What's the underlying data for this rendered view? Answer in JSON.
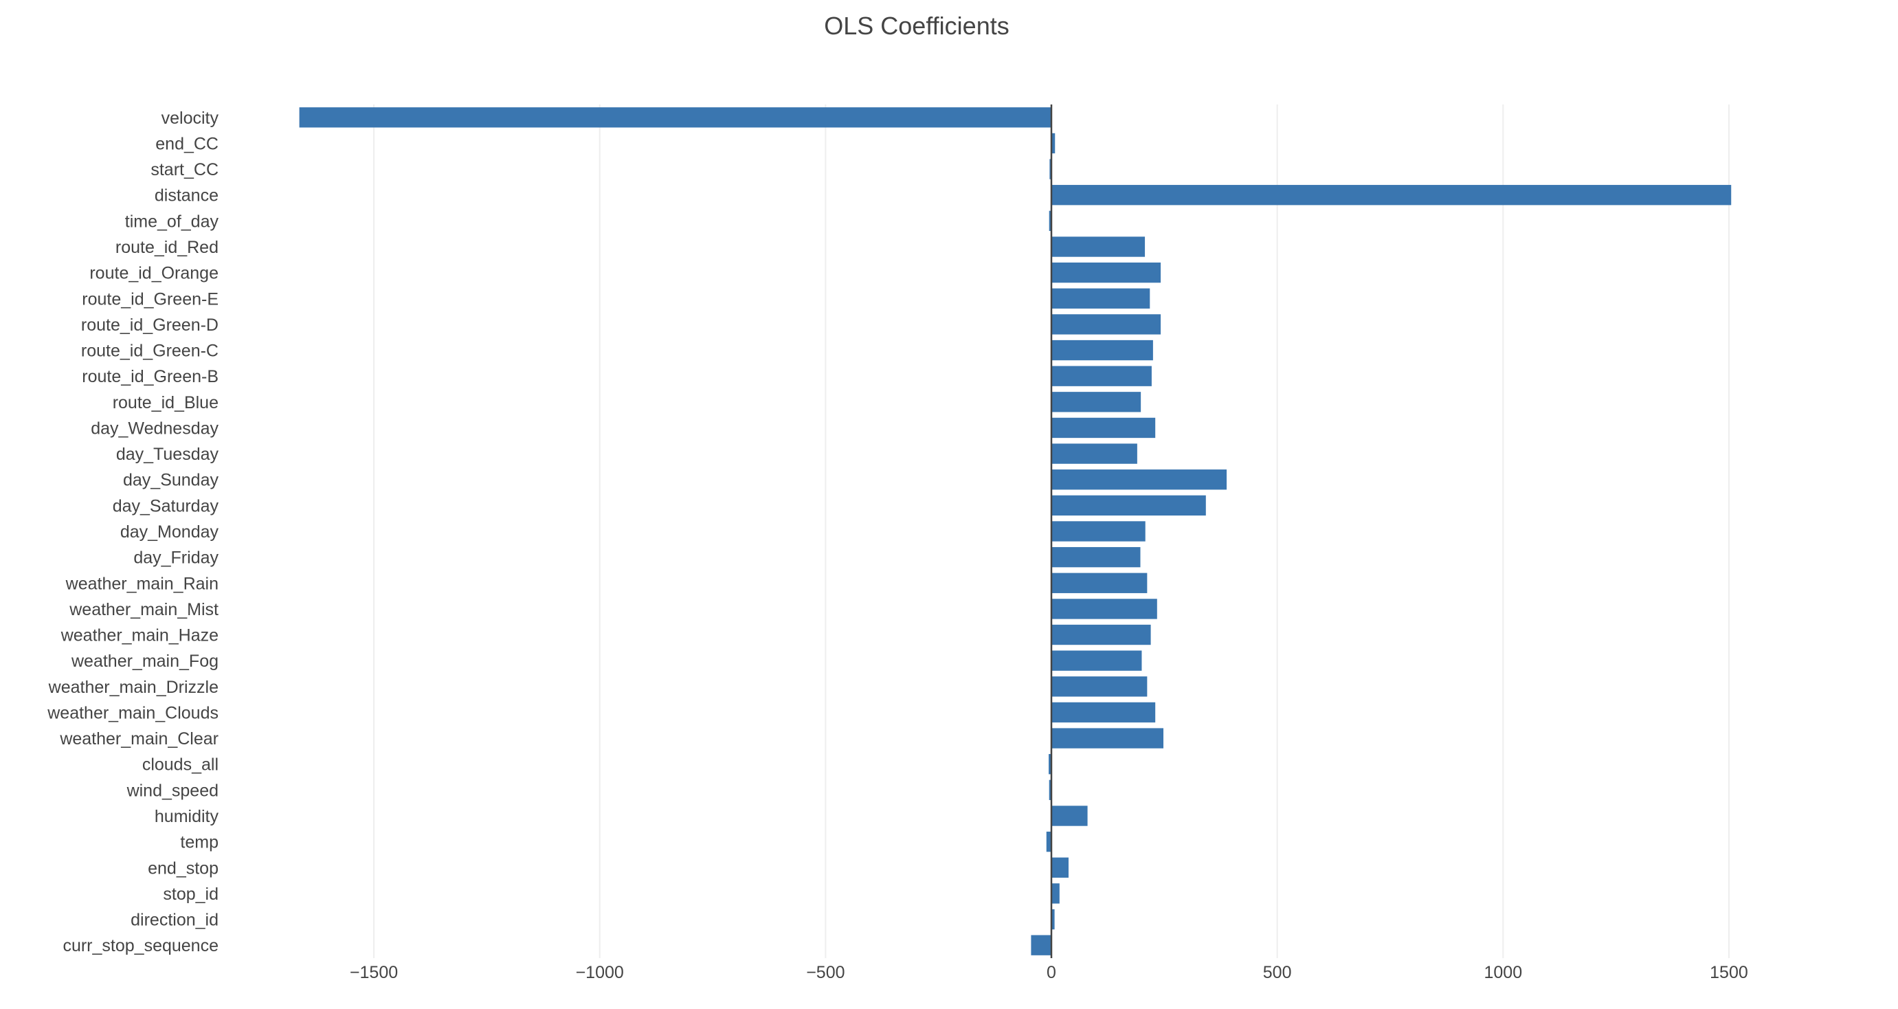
{
  "chart_data": {
    "type": "bar",
    "orientation": "horizontal",
    "title": "OLS Coefficients",
    "xlabel": "",
    "ylabel": "",
    "xlim": [
      -1780,
      1780
    ],
    "x_ticks": [
      -1500,
      -1000,
      -500,
      0,
      500,
      1000,
      1500
    ],
    "x_tick_labels": [
      "−1500",
      "−1000",
      "−500",
      "0",
      "500",
      "1000",
      "1500"
    ],
    "grid": true,
    "bar_color": "#3a76b0",
    "categories": [
      "velocity",
      "end_CC",
      "start_CC",
      "distance",
      "time_of_day",
      "route_id_Red",
      "route_id_Orange",
      "route_id_Green-E",
      "route_id_Green-D",
      "route_id_Green-C",
      "route_id_Green-B",
      "route_id_Blue",
      "day_Wednesday",
      "day_Tuesday",
      "day_Sunday",
      "day_Saturday",
      "day_Monday",
      "day_Friday",
      "weather_main_Rain",
      "weather_main_Mist",
      "weather_main_Haze",
      "weather_main_Fog",
      "weather_main_Drizzle",
      "weather_main_Clouds",
      "weather_main_Clear",
      "clouds_all",
      "wind_speed",
      "humidity",
      "temp",
      "end_stop",
      "stop_id",
      "direction_id",
      "curr_stop_sequence"
    ],
    "values": [
      -1665,
      8,
      -4,
      1505,
      -5,
      207,
      242,
      218,
      242,
      225,
      222,
      198,
      230,
      190,
      388,
      342,
      208,
      197,
      212,
      234,
      220,
      200,
      212,
      230,
      248,
      -6,
      -5,
      80,
      -11,
      38,
      18,
      7,
      -45
    ]
  }
}
